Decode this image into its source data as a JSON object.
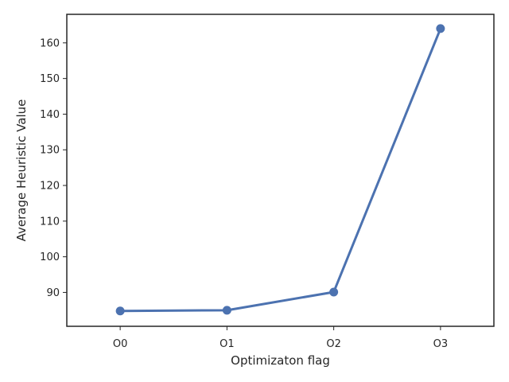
{
  "chart_data": {
    "type": "line",
    "title": "",
    "xlabel": "Optimizaton flag",
    "ylabel": "Average Heuristic Value",
    "categories": [
      "O0",
      "O1",
      "O2",
      "O3"
    ],
    "series": [
      {
        "values": [
          84.8,
          85.0,
          90.1,
          164.0
        ]
      }
    ],
    "ylim": [
      80.5,
      168.0
    ],
    "yticks": [
      90,
      100,
      110,
      120,
      130,
      140,
      150,
      160
    ],
    "grid": false,
    "legend": "none",
    "colors": {
      "line": "#4c72b0",
      "axes": "#262626",
      "text": "#262626"
    }
  }
}
